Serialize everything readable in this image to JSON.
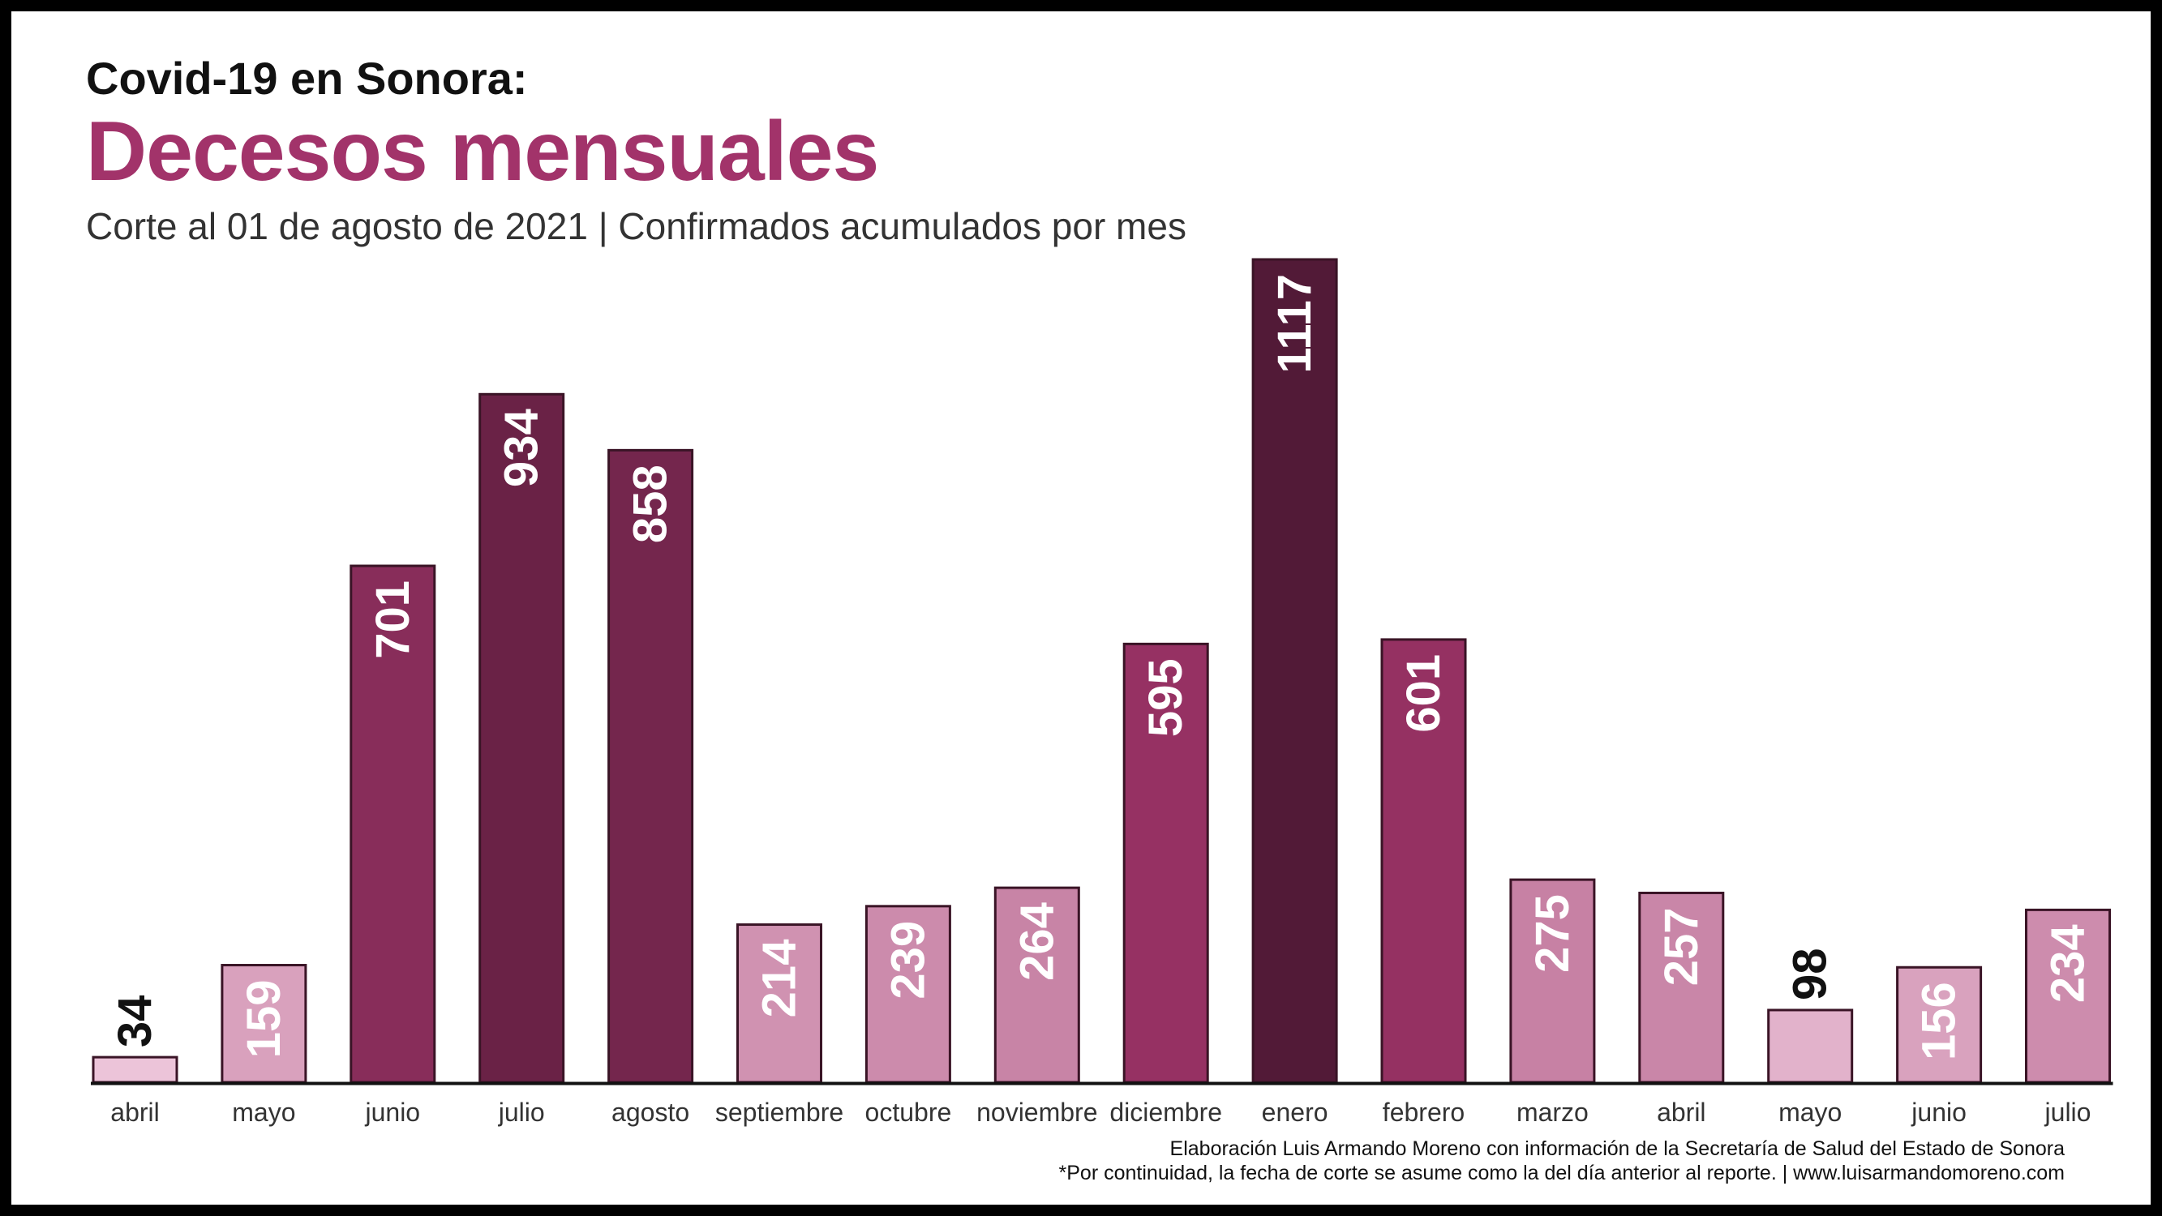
{
  "header": {
    "kicker": "Covid-19 en Sonora:",
    "title": "Decesos mensuales",
    "subtitle": "Corte al 01 de agosto de 2021 | Confirmados acumulados por mes"
  },
  "footer": {
    "credit": "Elaboración Luis Armando Moreno con información de la Secretaría de Salud del Estado de Sonora",
    "note": "*Por continuidad, la fecha de corte se asume como la del día anterior al reporte. | www.luisarmandomoreno.com"
  },
  "chart_data": {
    "type": "bar",
    "title": "Decesos mensuales",
    "subtitle": "Corte al 01 de agosto de 2021 | Confirmados acumulados por mes",
    "categories": [
      "abril",
      "mayo",
      "junio",
      "julio",
      "agosto",
      "septiembre",
      "octubre",
      "noviembre",
      "diciembre",
      "enero",
      "febrero",
      "marzo",
      "abril",
      "mayo",
      "junio",
      "julio"
    ],
    "values": [
      34,
      159,
      701,
      934,
      858,
      214,
      239,
      264,
      595,
      1117,
      601,
      275,
      257,
      98,
      156,
      234
    ],
    "ylim": [
      0,
      1117
    ],
    "grid": false,
    "legend": "none",
    "data_labels": "inside-top-rotated",
    "color_scale": {
      "low": "#f1cde0",
      "mid": "#9b3366",
      "high": "#521a37"
    },
    "bar_border": "#3a1426",
    "axis_color": "#111111"
  }
}
